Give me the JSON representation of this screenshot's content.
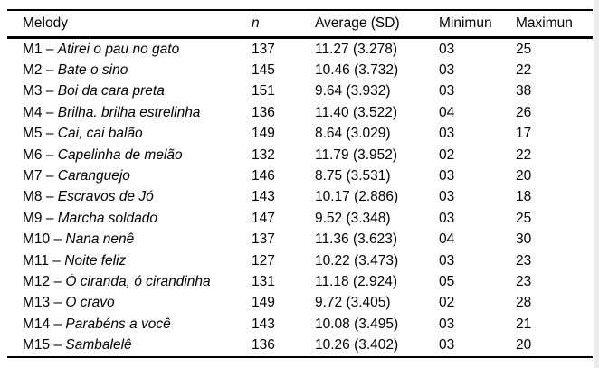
{
  "table": {
    "separator": "–",
    "colors": {
      "background": "#ffffff",
      "text": "#000000",
      "border": "#000000"
    },
    "headers": {
      "melody": "Melody",
      "n": "n",
      "average": "Average (SD)",
      "minimum": "Minimun",
      "maximum": "Maximun"
    },
    "rows": [
      {
        "id": "M1",
        "name": "Atirei o pau no gato",
        "n": "137",
        "avg": "11.27 (3.278)",
        "min": "03",
        "max": "25"
      },
      {
        "id": "M2",
        "name": "Bate o sino",
        "n": "145",
        "avg": "10.46 (3.732)",
        "min": "03",
        "max": "22"
      },
      {
        "id": "M3",
        "name": "Boi da cara preta",
        "n": "151",
        "avg": "9.64 (3.932)",
        "min": "03",
        "max": "38"
      },
      {
        "id": "M4",
        "name": "Brilha. brilha estrelinha",
        "n": "136",
        "avg": "11.40 (3.522)",
        "min": "04",
        "max": "26"
      },
      {
        "id": "M5",
        "name": "Cai, cai balão",
        "n": "149",
        "avg": "8.64 (3.029)",
        "min": "03",
        "max": "17"
      },
      {
        "id": "M6",
        "name": "Capelinha de melão",
        "n": "132",
        "avg": "11.79 (3.952)",
        "min": "02",
        "max": "22"
      },
      {
        "id": "M7",
        "name": "Caranguejo",
        "n": "146",
        "avg": "8.75 (3.531)",
        "min": "03",
        "max": "20"
      },
      {
        "id": "M8",
        "name": "Escravos de Jó",
        "n": "143",
        "avg": "10.17 (2.886)",
        "min": "03",
        "max": "18"
      },
      {
        "id": "M9",
        "name": "Marcha soldado",
        "n": "147",
        "avg": "9.52 (3.348)",
        "min": "03",
        "max": "25"
      },
      {
        "id": "M10",
        "name": "Nana nenê",
        "n": "137",
        "avg": "11.36 (3.623)",
        "min": "04",
        "max": "30"
      },
      {
        "id": "M11",
        "name": "Noite feliz",
        "n": "127",
        "avg": "10.22 (3.473)",
        "min": "03",
        "max": "23"
      },
      {
        "id": "M12",
        "name": "Ó ciranda, ó cirandinha",
        "n": "131",
        "avg": "11.18 (2.924)",
        "min": "05",
        "max": "23"
      },
      {
        "id": "M13",
        "name": "O cravo",
        "n": "149",
        "avg": "9.72 (3.405)",
        "min": "02",
        "max": "28"
      },
      {
        "id": "M14",
        "name": "Parabéns a você",
        "n": "143",
        "avg": "10.08 (3.495)",
        "min": "03",
        "max": "21"
      },
      {
        "id": "M15",
        "name": "Sambalelê",
        "n": "136",
        "avg": "10.26 (3.402)",
        "min": "03",
        "max": "20"
      }
    ]
  }
}
